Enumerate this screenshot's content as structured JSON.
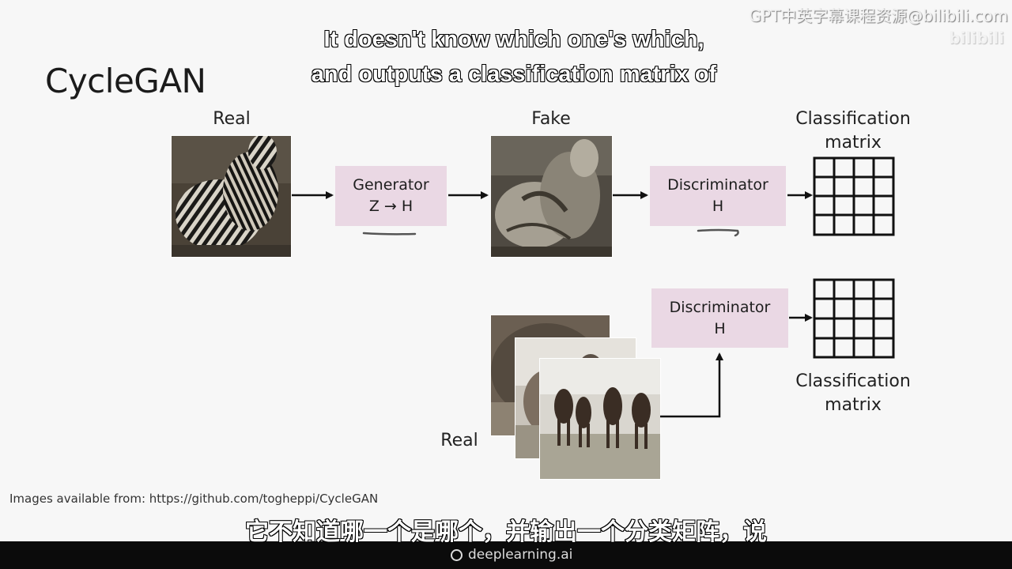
{
  "title": "CycleGAN",
  "labels": {
    "real_top": "Real",
    "fake_top": "Fake",
    "classification_top": "Classification\nmatrix",
    "real_bottom": "Real",
    "classification_bottom": "Classification\nmatrix"
  },
  "generator": {
    "line1": "Generator",
    "line2": "Z → H"
  },
  "discriminator_top": {
    "line1": "Discriminator",
    "line2": "H"
  },
  "discriminator_bottom": {
    "line1": "Discriminator",
    "line2": "H"
  },
  "credits": "Images available from: https://github.com/togheppi/CycleGAN",
  "subtitles": {
    "en_line1": "It doesn't know which one's which,",
    "en_line2": "and outputs a classification matrix of",
    "zh": "它不知道哪一个是哪个，并输出一个分类矩阵，说"
  },
  "watermark": {
    "text": "GPT中英字幕课程资源@bilibili.com",
    "sub": "bilibili"
  },
  "brand": {
    "name": "deeplearning.ai",
    "icon": "deeplearning-logo-icon"
  },
  "colors": {
    "box_fill": "#ead8e4",
    "arrow": "#111111",
    "underline_annotation": "#555555"
  }
}
